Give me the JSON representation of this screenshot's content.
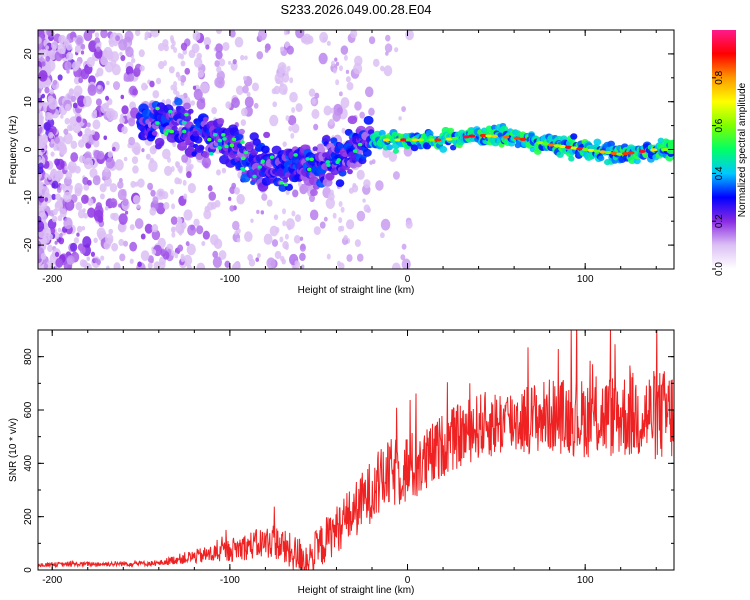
{
  "title": "S233.2026.049.00.28.E04",
  "chart_data": [
    {
      "type": "heatmap",
      "name": "spectrogram",
      "xlabel": "Height of straight line (km)",
      "ylabel": "Frequency (Hz)",
      "xlim": [
        -208,
        150
      ],
      "ylim": [
        -25,
        25
      ],
      "xticks": [
        -200,
        -100,
        0,
        100
      ],
      "yticks": [
        -20,
        -10,
        0,
        10,
        20
      ],
      "ridge": [
        {
          "x": -150,
          "y": 6
        },
        {
          "x": -140,
          "y": 6
        },
        {
          "x": -130,
          "y": 5
        },
        {
          "x": -120,
          "y": 3
        },
        {
          "x": -110,
          "y": 3
        },
        {
          "x": -100,
          "y": 1
        },
        {
          "x": -90,
          "y": -2
        },
        {
          "x": -80,
          "y": -3
        },
        {
          "x": -70,
          "y": -4
        },
        {
          "x": -60,
          "y": -2
        },
        {
          "x": -50,
          "y": -4
        },
        {
          "x": -40,
          "y": -2
        },
        {
          "x": -30,
          "y": 0
        },
        {
          "x": -20,
          "y": 2
        },
        {
          "x": -10,
          "y": 2
        },
        {
          "x": 0,
          "y": 2
        },
        {
          "x": 20,
          "y": 2
        },
        {
          "x": 40,
          "y": 3
        },
        {
          "x": 60,
          "y": 2.5
        },
        {
          "x": 80,
          "y": 1
        },
        {
          "x": 100,
          "y": 0
        },
        {
          "x": 120,
          "y": -1
        },
        {
          "x": 140,
          "y": 0
        },
        {
          "x": 150,
          "y": 0
        }
      ],
      "colorbar": {
        "label": "Normalized spectral amplitude",
        "range": [
          0,
          1
        ],
        "ticks": [
          "0.0",
          "0.2",
          "0.4",
          "0.6",
          "0.8"
        ],
        "colors": [
          "#ffffff",
          "#dcc0f5",
          "#8a2be2",
          "#0000ff",
          "#00c8ff",
          "#00ff66",
          "#7fff00",
          "#ffff00",
          "#ff9900",
          "#ff0000",
          "#ff1a8c"
        ]
      }
    },
    {
      "type": "line",
      "name": "snr",
      "xlabel": "Height of straight line (km)",
      "ylabel": "SNR (10 * v/v)",
      "xlim": [
        -208,
        150
      ],
      "ylim": [
        0,
        900
      ],
      "xticks": [
        -200,
        -100,
        0,
        100
      ],
      "yticks": [
        0,
        200,
        400,
        600,
        800
      ],
      "color": "#ee2222",
      "trend": [
        {
          "x": -208,
          "y": 20
        },
        {
          "x": -140,
          "y": 25
        },
        {
          "x": -130,
          "y": 40
        },
        {
          "x": -110,
          "y": 60
        },
        {
          "x": -90,
          "y": 90
        },
        {
          "x": -75,
          "y": 110
        },
        {
          "x": -65,
          "y": 60
        },
        {
          "x": -55,
          "y": 40
        },
        {
          "x": -45,
          "y": 120
        },
        {
          "x": -30,
          "y": 220
        },
        {
          "x": -20,
          "y": 300
        },
        {
          "x": -10,
          "y": 360
        },
        {
          "x": 0,
          "y": 380
        },
        {
          "x": 10,
          "y": 400
        },
        {
          "x": 20,
          "y": 470
        },
        {
          "x": 40,
          "y": 540
        },
        {
          "x": 60,
          "y": 560
        },
        {
          "x": 80,
          "y": 580
        },
        {
          "x": 100,
          "y": 570
        },
        {
          "x": 120,
          "y": 580
        },
        {
          "x": 150,
          "y": 580
        }
      ],
      "noise": [
        {
          "x": -208,
          "y": 8
        },
        {
          "x": -140,
          "y": 10
        },
        {
          "x": -110,
          "y": 35
        },
        {
          "x": -70,
          "y": 70
        },
        {
          "x": -40,
          "y": 90
        },
        {
          "x": -20,
          "y": 120
        },
        {
          "x": 0,
          "y": 140
        },
        {
          "x": 20,
          "y": 120
        },
        {
          "x": 60,
          "y": 130
        },
        {
          "x": 100,
          "y": 150
        },
        {
          "x": 150,
          "y": 180
        }
      ]
    }
  ]
}
